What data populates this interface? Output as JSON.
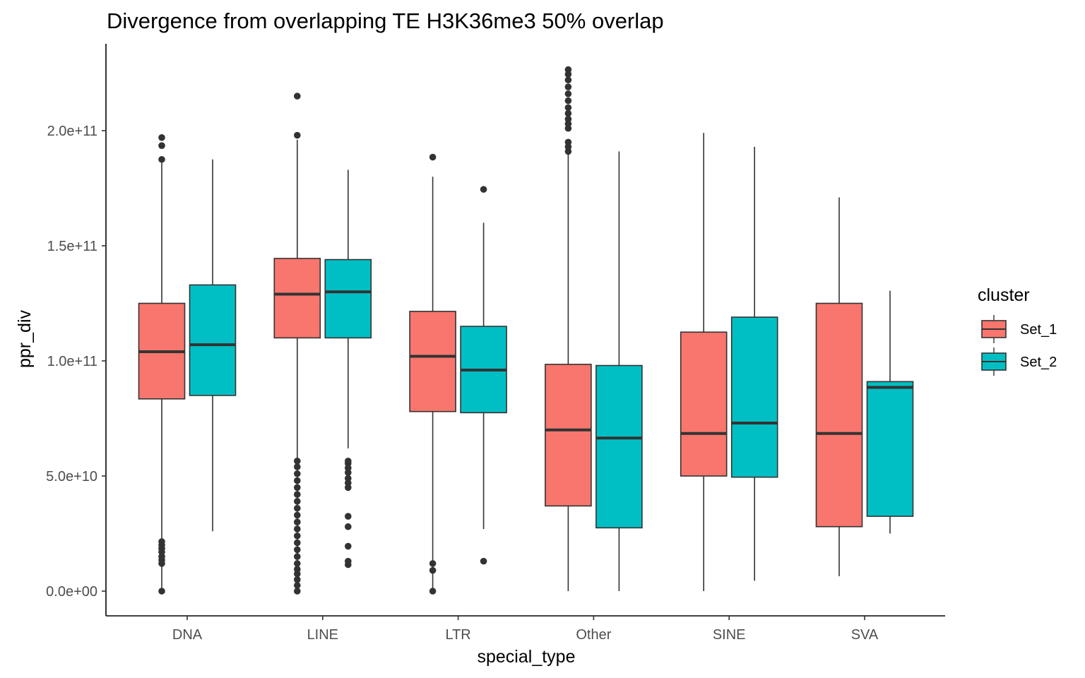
{
  "chart_data": {
    "type": "boxplot",
    "title": "Divergence from overlapping TE H3K36me3 50% overlap",
    "xlabel": "special_type",
    "ylabel": "ppr_div",
    "categories": [
      "DNA",
      "LINE",
      "LTR",
      "Other",
      "SINE",
      "SVA"
    ],
    "ylim": [
      -11000000000,
      237000000000
    ],
    "yticks": [
      {
        "value": 0,
        "label": "0.0e+00"
      },
      {
        "value": 50000000000,
        "label": "5.0e+10"
      },
      {
        "value": 100000000000,
        "label": "1.0e+11"
      },
      {
        "value": 150000000000,
        "label": "1.5e+11"
      },
      {
        "value": 200000000000,
        "label": "2.0e+11"
      }
    ],
    "grid": false,
    "legend": {
      "title": "cluster",
      "position": "right"
    },
    "colors": {
      "Set_1": "#F8766D",
      "Set_2": "#00BFC4",
      "line": "#333333",
      "axis": "#000000"
    },
    "series": [
      {
        "name": "Set_1",
        "boxes": [
          {
            "category": "DNA",
            "whisker_low": 0,
            "q1": 83500000000,
            "median": 104000000000,
            "q3": 125000000000,
            "whisker_high": 187000000000,
            "outliers": [
              0,
              12000000000,
              13500000000,
              15000000000,
              17000000000,
              18500000000,
              20000000000,
              21500000000,
              187500000000,
              193500000000,
              197000000000
            ]
          },
          {
            "category": "LINE",
            "whisker_low": 6000000000,
            "q1": 110000000000,
            "median": 129000000000,
            "q3": 144500000000,
            "whisker_high": 196000000000,
            "outliers": [
              0,
              2500000000,
              5000000000,
              7500000000,
              9500000000,
              12000000000,
              15000000000,
              18000000000,
              21000000000,
              24000000000,
              27000000000,
              30000000000,
              33000000000,
              36000000000,
              39000000000,
              42000000000,
              45000000000,
              48000000000,
              51000000000,
              54000000000,
              56500000000,
              198000000000,
              215000000000
            ]
          },
          {
            "category": "LTR",
            "whisker_low": 0,
            "q1": 78000000000,
            "median": 102000000000,
            "q3": 121500000000,
            "whisker_high": 180000000000,
            "outliers": [
              0,
              9000000000,
              12000000000,
              188500000000
            ]
          },
          {
            "category": "Other",
            "whisker_low": 0,
            "q1": 37000000000,
            "median": 70000000000,
            "q3": 98500000000,
            "whisker_high": 190500000000,
            "outliers": [
              191000000000,
              193000000000,
              195000000000,
              201000000000,
              203000000000,
              205000000000,
              207500000000,
              210000000000,
              213000000000,
              216000000000,
              219000000000,
              222000000000,
              224500000000,
              226500000000
            ]
          },
          {
            "category": "SINE",
            "whisker_low": 0,
            "q1": 50000000000,
            "median": 68500000000,
            "q3": 112500000000,
            "whisker_high": 199000000000,
            "outliers": []
          },
          {
            "category": "SVA",
            "whisker_low": 6500000000,
            "q1": 28000000000,
            "median": 68500000000,
            "q3": 125000000000,
            "whisker_high": 171000000000,
            "outliers": []
          }
        ]
      },
      {
        "name": "Set_2",
        "boxes": [
          {
            "category": "DNA",
            "whisker_low": 26000000000,
            "q1": 85000000000,
            "median": 107000000000,
            "q3": 133000000000,
            "whisker_high": 187500000000,
            "outliers": []
          },
          {
            "category": "LINE",
            "whisker_low": 62000000000,
            "q1": 110000000000,
            "median": 130000000000,
            "q3": 144000000000,
            "whisker_high": 183000000000,
            "outliers": [
              11500000000,
              13000000000,
              19500000000,
              28000000000,
              32500000000,
              45000000000,
              47000000000,
              49000000000,
              51500000000,
              53500000000,
              55500000000,
              56500000000
            ]
          },
          {
            "category": "LTR",
            "whisker_low": 27000000000,
            "q1": 77500000000,
            "median": 96000000000,
            "q3": 115000000000,
            "whisker_high": 160000000000,
            "outliers": [
              13000000000,
              174500000000
            ]
          },
          {
            "category": "Other",
            "whisker_low": 0,
            "q1": 27500000000,
            "median": 66500000000,
            "q3": 98000000000,
            "whisker_high": 191000000000,
            "outliers": []
          },
          {
            "category": "SINE",
            "whisker_low": 4500000000,
            "q1": 49500000000,
            "median": 73000000000,
            "q3": 119000000000,
            "whisker_high": 193000000000,
            "outliers": []
          },
          {
            "category": "SVA",
            "whisker_low": 25000000000,
            "q1": 32500000000,
            "median": 88500000000,
            "q3": 91000000000,
            "whisker_high": 130500000000,
            "outliers": []
          }
        ]
      }
    ]
  }
}
